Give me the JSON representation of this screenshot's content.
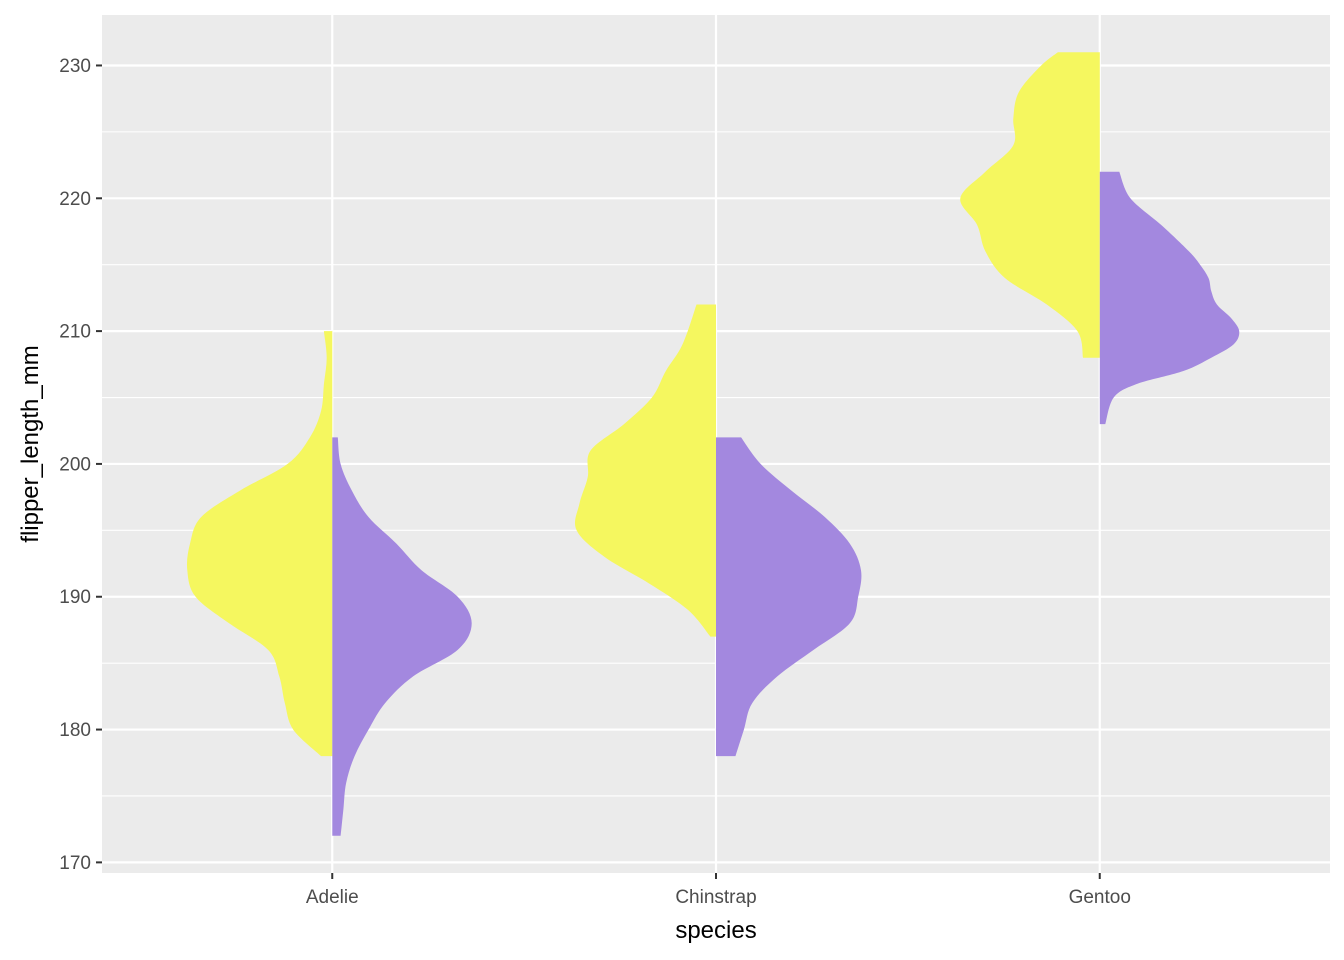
{
  "chart_data": {
    "type": "violin",
    "subtype": "split-violin",
    "xlabel": "species",
    "ylabel": "flipper_length_mm",
    "categories": [
      "Adelie",
      "Chinstrap",
      "Gentoo"
    ],
    "ylim": [
      169.2,
      233.8
    ],
    "yticks": [
      170,
      180,
      190,
      200,
      210,
      220,
      230
    ],
    "ytick_labels": [
      "170",
      "180",
      "190",
      "200",
      "210",
      "220",
      "230"
    ],
    "grid": true,
    "legend": "none",
    "colors": {
      "panel": "#ebebeb",
      "grid": "#ffffff",
      "tick_text": "#4d4d4d",
      "left_half": "#f5f75f",
      "right_half": "#a388df"
    },
    "violins": [
      {
        "category": "Adelie",
        "left": {
          "min": 178,
          "max": 210,
          "y": [
            178,
            180,
            182,
            184,
            186,
            188,
            190,
            192,
            194,
            196,
            198,
            200,
            202,
            204,
            206,
            208,
            210
          ],
          "width": [
            0.04,
            0.14,
            0.17,
            0.19,
            0.23,
            0.37,
            0.49,
            0.52,
            0.51,
            0.47,
            0.33,
            0.16,
            0.08,
            0.04,
            0.03,
            0.02,
            0.03
          ]
        },
        "right": {
          "min": 172,
          "max": 202,
          "y": [
            172,
            174,
            176,
            178,
            180,
            182,
            184,
            186,
            188,
            190,
            192,
            194,
            196,
            198,
            200,
            202
          ],
          "width": [
            0.03,
            0.04,
            0.05,
            0.08,
            0.13,
            0.19,
            0.29,
            0.45,
            0.5,
            0.45,
            0.32,
            0.23,
            0.13,
            0.07,
            0.03,
            0.02
          ]
        }
      },
      {
        "category": "Chinstrap",
        "left": {
          "min": 187,
          "max": 212,
          "y": [
            187,
            189,
            191,
            193,
            195,
            197,
            199,
            201,
            203,
            205,
            207,
            209,
            212
          ],
          "width": [
            0.02,
            0.1,
            0.24,
            0.4,
            0.5,
            0.49,
            0.46,
            0.45,
            0.33,
            0.23,
            0.18,
            0.12,
            0.07
          ]
        },
        "right": {
          "min": 178,
          "max": 202,
          "y": [
            178,
            180,
            182,
            184,
            186,
            188,
            190,
            192,
            194,
            196,
            198,
            200,
            202
          ],
          "width": [
            0.07,
            0.1,
            0.13,
            0.22,
            0.35,
            0.48,
            0.51,
            0.52,
            0.48,
            0.39,
            0.27,
            0.16,
            0.09
          ]
        }
      },
      {
        "category": "Gentoo",
        "left": {
          "min": 208,
          "max": 231,
          "y": [
            208,
            210,
            212,
            214,
            216,
            218,
            220,
            222,
            224,
            226,
            228,
            230,
            231
          ],
          "width": [
            0.06,
            0.08,
            0.19,
            0.34,
            0.41,
            0.44,
            0.5,
            0.41,
            0.31,
            0.31,
            0.29,
            0.21,
            0.15
          ]
        },
        "right": {
          "min": 203,
          "max": 222,
          "y": [
            203,
            205,
            206,
            207,
            208,
            209,
            210,
            211,
            212,
            213,
            214,
            215,
            216,
            218,
            220,
            222
          ],
          "width": [
            0.02,
            0.05,
            0.13,
            0.3,
            0.4,
            0.48,
            0.5,
            0.47,
            0.42,
            0.4,
            0.39,
            0.36,
            0.32,
            0.22,
            0.11,
            0.07
          ]
        }
      }
    ]
  }
}
